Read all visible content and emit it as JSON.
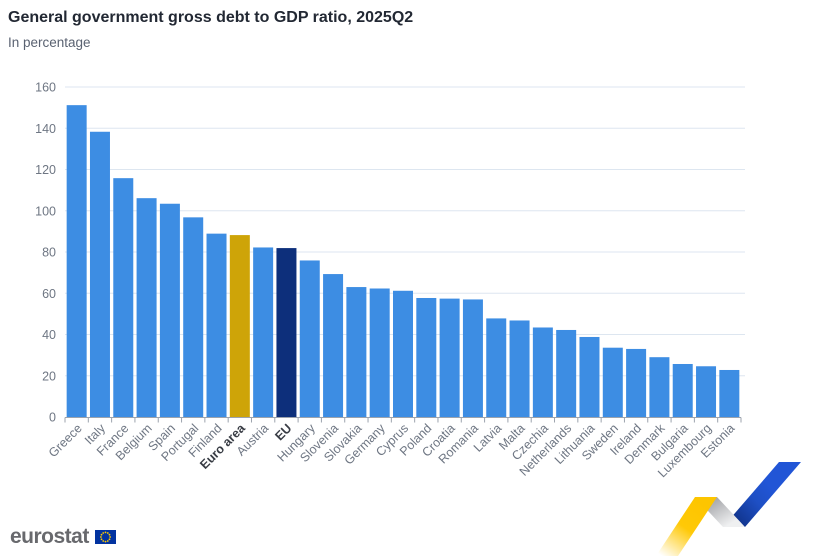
{
  "chart_data": {
    "type": "bar",
    "title": "General government gross debt to GDP ratio, 2025Q2",
    "subtitle": "In percentage",
    "xlabel": "",
    "ylabel": "",
    "unit": "%",
    "grid": true,
    "legend": "none",
    "ylim": [
      0,
      160
    ],
    "yticks": [
      0,
      20,
      40,
      60,
      80,
      100,
      120,
      140,
      160
    ],
    "categories": [
      "Greece",
      "Italy",
      "France",
      "Belgium",
      "Spain",
      "Portugal",
      "Finland",
      "Euro area",
      "Austria",
      "EU",
      "Hungary",
      "Slovenia",
      "Slovakia",
      "Germany",
      "Cyprus",
      "Poland",
      "Croatia",
      "Romania",
      "Latvia",
      "Malta",
      "Czechia",
      "Netherlands",
      "Lithuania",
      "Sweden",
      "Ireland",
      "Denmark",
      "Bulgaria",
      "Luxembourg",
      "Estonia"
    ],
    "values": [
      151.2,
      138.3,
      115.8,
      106.1,
      103.4,
      96.8,
      88.9,
      88.2,
      82.2,
      81.9,
      75.9,
      69.3,
      63.0,
      62.3,
      61.2,
      57.7,
      57.4,
      57.0,
      47.8,
      46.8,
      43.4,
      42.2,
      38.8,
      33.6,
      33.0,
      29.0,
      25.7,
      24.6,
      22.8
    ],
    "emphasized": [
      {
        "category": "Euro area",
        "color_key": "bar_euro_area",
        "bold_label": true
      },
      {
        "category": "EU",
        "color_key": "bar_eu",
        "bold_label": true
      }
    ]
  },
  "footer": {
    "logo_text": "eurostat"
  },
  "colors": {
    "bar_default": "#3D8DE3",
    "bar_euro_area": "#CEA408",
    "bar_eu": "#0D2F7B",
    "gridline": "#DDE6F0",
    "axis": "#9CA3AD",
    "tick_label": "#6E7683",
    "emph_label": "#383C44",
    "title": "#222833",
    "subtitle": "#5A6271",
    "logo_text": "#68696D",
    "flag_blue": "#0233A0",
    "star_yellow": "#FFCC00",
    "ribbon_yellow": "#FFC907",
    "ribbon_gray": "#98999D",
    "ribbon_blue": "#2155D6",
    "ribbon_blue_dark": "#0D2C7B"
  }
}
